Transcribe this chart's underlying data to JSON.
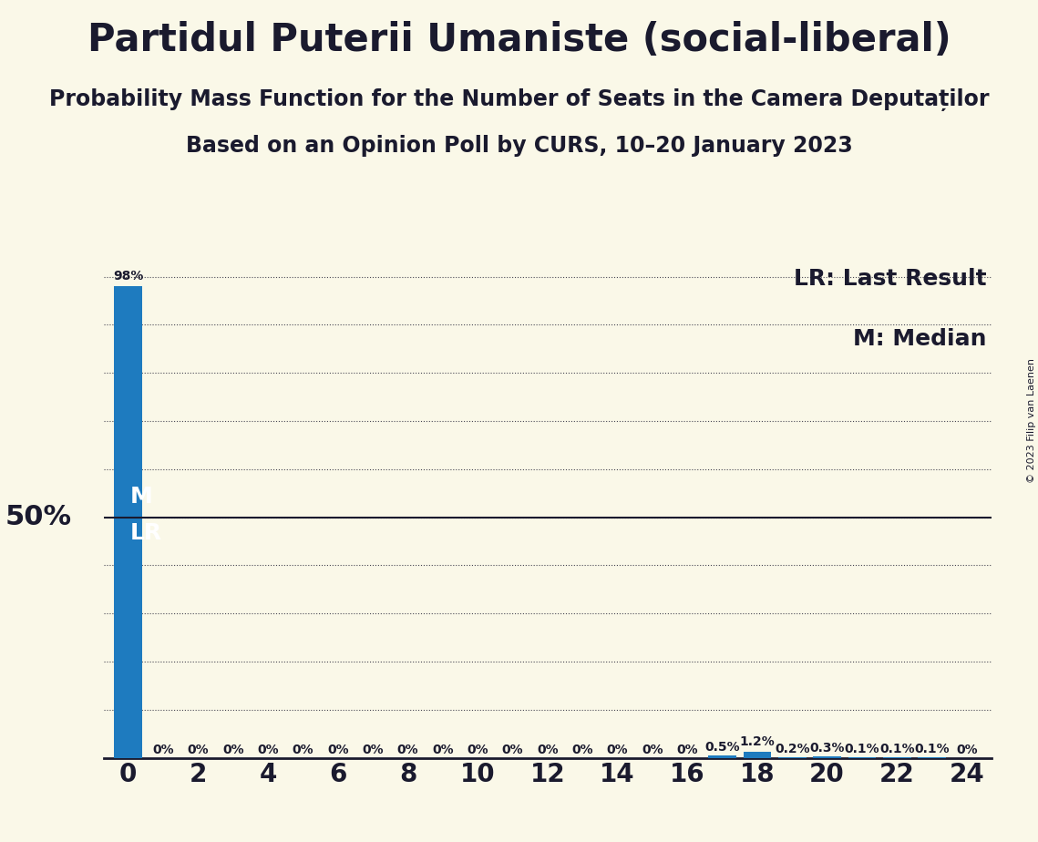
{
  "title": "Partidul Puterii Umaniste (social-liberal)",
  "subtitle1": "Probability Mass Function for the Number of Seats in the Camera Deputaților",
  "subtitle2": "Based on an Opinion Poll by CURS, 10–20 January 2023",
  "copyright": "© 2023 Filip van Laenen",
  "background_color": "#faf8e8",
  "bar_color": "#1e7bbf",
  "seats": [
    0,
    1,
    2,
    3,
    4,
    5,
    6,
    7,
    8,
    9,
    10,
    11,
    12,
    13,
    14,
    15,
    16,
    17,
    18,
    19,
    20,
    21,
    22,
    23,
    24
  ],
  "probabilities": [
    0.98,
    0.0,
    0.0,
    0.0,
    0.0,
    0.0,
    0.0,
    0.0,
    0.0,
    0.0,
    0.0,
    0.0,
    0.0,
    0.0,
    0.0,
    0.0,
    0.0,
    0.005,
    0.012,
    0.002,
    0.003,
    0.001,
    0.001,
    0.001,
    0.0
  ],
  "labels": [
    "98%",
    "0%",
    "0%",
    "0%",
    "0%",
    "0%",
    "0%",
    "0%",
    "0%",
    "0%",
    "0%",
    "0%",
    "0%",
    "0%",
    "0%",
    "0%",
    "0%",
    "0.5%",
    "1.2%",
    "0.2%",
    "0.3%",
    "0.1%",
    "0.1%",
    "0.1%",
    "0%"
  ],
  "median": 0,
  "last_result": 0,
  "fifty_pct_line": 0.5,
  "ylim": [
    0,
    1.05
  ],
  "yticks": [
    0.0,
    0.1,
    0.2,
    0.3,
    0.4,
    0.5,
    0.6,
    0.7,
    0.8,
    0.9,
    1.0
  ],
  "xticks": [
    0,
    2,
    4,
    6,
    8,
    10,
    12,
    14,
    16,
    18,
    20,
    22,
    24
  ],
  "title_fontsize": 30,
  "subtitle_fontsize": 17,
  "tick_fontsize": 20,
  "label_fontsize": 10,
  "legend_fontsize": 18,
  "fifty_pct_fontsize": 22,
  "ml_fontsize": 18
}
